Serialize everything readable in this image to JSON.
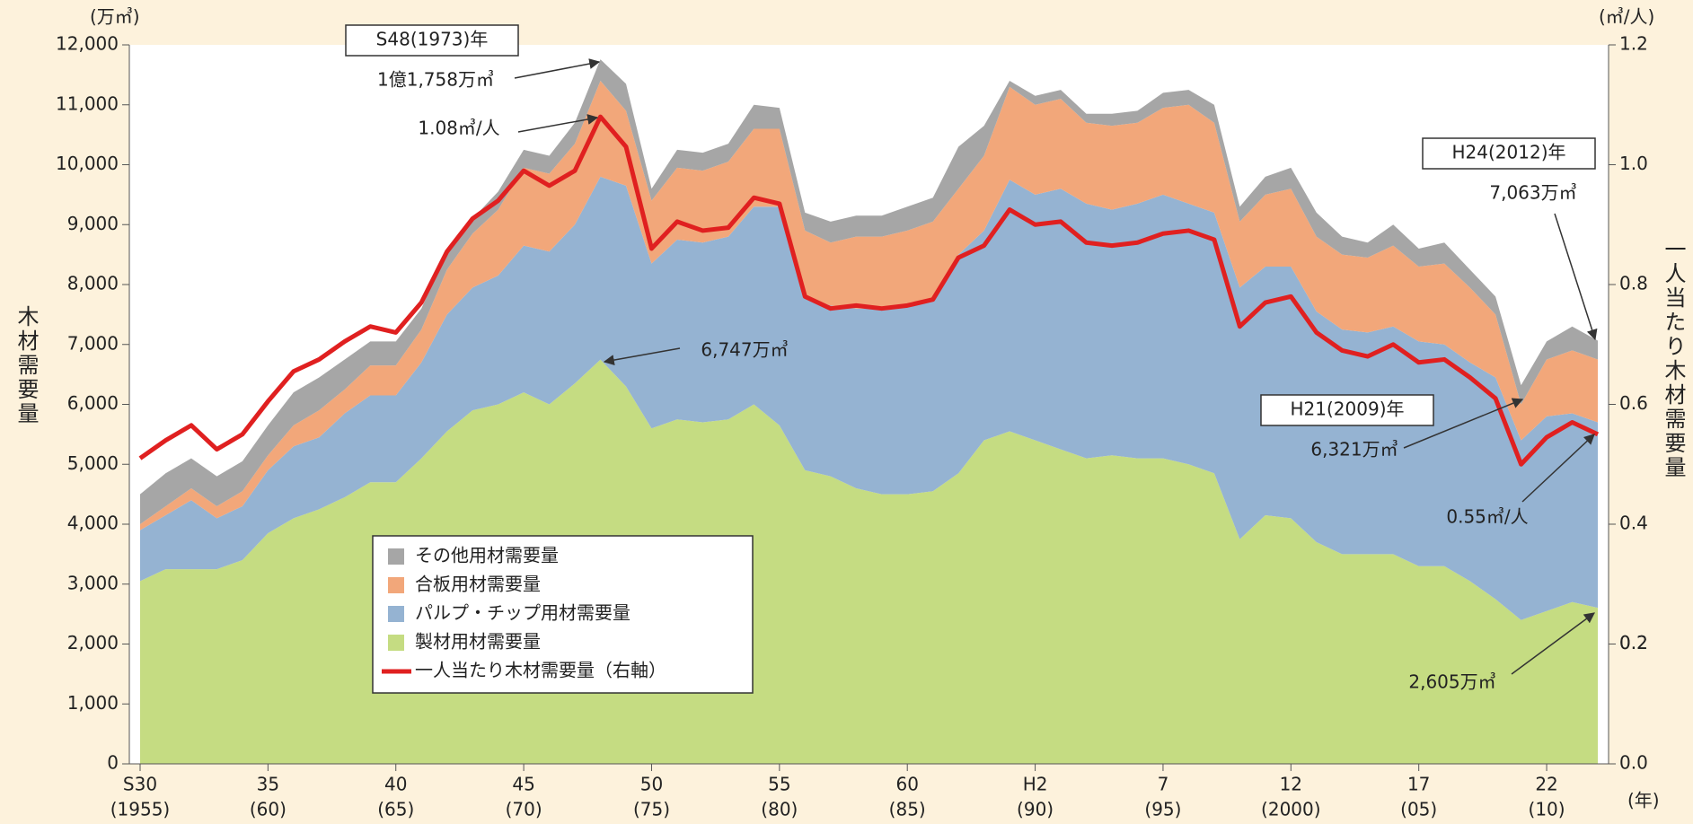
{
  "chart_data": {
    "type": "area",
    "stacked": true,
    "y_unit": "(万㎥)",
    "y2_unit": "(㎥/人)",
    "x_unit": "(年)",
    "ylabel": "木材需要量",
    "y2label": "一人当たり木材需要量",
    "x": [
      1955,
      1956,
      1957,
      1958,
      1959,
      1960,
      1961,
      1962,
      1963,
      1964,
      1965,
      1966,
      1967,
      1968,
      1969,
      1970,
      1971,
      1972,
      1973,
      1974,
      1975,
      1976,
      1977,
      1978,
      1979,
      1980,
      1981,
      1982,
      1983,
      1984,
      1985,
      1986,
      1987,
      1988,
      1989,
      1990,
      1991,
      1992,
      1993,
      1994,
      1995,
      1996,
      1997,
      1998,
      1999,
      2000,
      2001,
      2002,
      2003,
      2004,
      2005,
      2006,
      2007,
      2008,
      2009,
      2010,
      2011,
      2012
    ],
    "xlim": [
      1955,
      2012
    ],
    "xticks": [
      {
        "value": 1955,
        "label": "S30",
        "year_label": "(1955)"
      },
      {
        "value": 1960,
        "label": "35",
        "year_label": "(60)"
      },
      {
        "value": 1965,
        "label": "40",
        "year_label": "(65)"
      },
      {
        "value": 1970,
        "label": "45",
        "year_label": "(70)"
      },
      {
        "value": 1975,
        "label": "50",
        "year_label": "(75)"
      },
      {
        "value": 1980,
        "label": "55",
        "year_label": "(80)"
      },
      {
        "value": 1985,
        "label": "60",
        "year_label": "(85)"
      },
      {
        "value": 1990,
        "label": "H2",
        "year_label": "(90)"
      },
      {
        "value": 1995,
        "label": "7",
        "year_label": "(95)"
      },
      {
        "value": 2000,
        "label": "12",
        "year_label": "(2000)"
      },
      {
        "value": 2005,
        "label": "17",
        "year_label": "(05)"
      },
      {
        "value": 2010,
        "label": "22",
        "year_label": "(10)"
      }
    ],
    "ylim": [
      0,
      12000
    ],
    "yticks": [
      0,
      {
        "value": 1000,
        "label": "1,000"
      },
      {
        "value": 2000,
        "label": "2,000"
      },
      {
        "value": 3000,
        "label": "3,000"
      },
      {
        "value": 4000,
        "label": "4,000"
      },
      {
        "value": 5000,
        "label": "5,000"
      },
      {
        "value": 6000,
        "label": "6,000"
      },
      {
        "value": 7000,
        "label": "7,000"
      },
      {
        "value": 8000,
        "label": "8,000"
      },
      {
        "value": 9000,
        "label": "9,000"
      },
      {
        "value": 10000,
        "label": "10,000"
      },
      {
        "value": 11000,
        "label": "11,000"
      },
      {
        "value": 12000,
        "label": "12,000"
      }
    ],
    "y2lim": [
      0,
      1.2
    ],
    "y2ticks": [
      {
        "value": 0,
        "label": "0.0"
      },
      0.2,
      0.4,
      0.6,
      0.8,
      {
        "value": 1,
        "label": "1.0"
      },
      0.2,
      1.2
    ],
    "series": [
      {
        "name": "製材用材需要量",
        "color": "#c5dc82",
        "values": [
          3050,
          3250,
          3250,
          3250,
          3400,
          3850,
          4100,
          4250,
          4450,
          4700,
          4700,
          5100,
          5550,
          5900,
          6000,
          6200,
          6000,
          6350,
          6747,
          6300,
          5600,
          5750,
          5700,
          5750,
          6000,
          5650,
          4900,
          4800,
          4600,
          4500,
          4500,
          4550,
          4850,
          5400,
          5550,
          5400,
          5250,
          5100,
          5150,
          5100,
          5100,
          5000,
          4850,
          3750,
          4150,
          4100,
          3700,
          3500,
          3500,
          3500,
          3300,
          3300,
          3050,
          2750,
          2400,
          2550,
          2700,
          2605
        ]
      },
      {
        "name": "パルプ・チップ用材需要量",
        "color": "#95b3d2",
        "values": [
          850,
          900,
          1150,
          850,
          900,
          1050,
          1200,
          1200,
          1400,
          1450,
          1450,
          1600,
          1950,
          2050,
          2150,
          2450,
          2550,
          2650,
          3053,
          3350,
          2750,
          3000,
          3000,
          3050,
          3300,
          3650,
          2900,
          2850,
          3000,
          3100,
          3150,
          3200,
          3650,
          3500,
          4200,
          4100,
          4350,
          4250,
          4100,
          4250,
          4400,
          4350,
          4350,
          4200,
          4150,
          4200,
          3850,
          3750,
          3700,
          3800,
          3750,
          3700,
          3650,
          3700,
          3000,
          3250,
          3150,
          3095
        ]
      },
      {
        "name": "合板用材需要量",
        "color": "#f2a77a",
        "values": [
          100,
          150,
          200,
          200,
          250,
          250,
          350,
          450,
          400,
          500,
          500,
          550,
          750,
          900,
          1100,
          1300,
          1300,
          1350,
          1600,
          1250,
          1050,
          1200,
          1200,
          1250,
          1300,
          1300,
          1100,
          1050,
          1200,
          1200,
          1250,
          1300,
          1100,
          1250,
          1550,
          1500,
          1500,
          1350,
          1400,
          1350,
          1450,
          1650,
          1500,
          1100,
          1200,
          1300,
          1250,
          1250,
          1250,
          1350,
          1250,
          1350,
          1250,
          1050,
          600,
          950,
          1050,
          1050
        ]
      },
      {
        "name": "その他用材需要量",
        "color": "#a6a6a6",
        "values": [
          500,
          550,
          500,
          500,
          500,
          500,
          550,
          550,
          500,
          400,
          400,
          350,
          300,
          250,
          300,
          300,
          300,
          350,
          358,
          450,
          200,
          300,
          300,
          300,
          400,
          350,
          300,
          350,
          350,
          350,
          400,
          400,
          700,
          500,
          100,
          150,
          150,
          150,
          200,
          200,
          250,
          250,
          300,
          250,
          300,
          350,
          400,
          300,
          250,
          350,
          300,
          350,
          300,
          300,
          321,
          300,
          400,
          313
        ]
      },
      {
        "name": "一人当たり木材需要量（右軸）",
        "color": "#e02020",
        "type": "line",
        "axis": "y2",
        "values": [
          0.51,
          0.54,
          0.565,
          0.525,
          0.55,
          0.605,
          0.655,
          0.675,
          0.705,
          0.73,
          0.72,
          0.77,
          0.855,
          0.91,
          0.94,
          0.99,
          0.965,
          0.99,
          1.08,
          1.03,
          0.86,
          0.905,
          0.89,
          0.895,
          0.945,
          0.935,
          0.78,
          0.76,
          0.765,
          0.76,
          0.765,
          0.775,
          0.845,
          0.865,
          0.925,
          0.9,
          0.905,
          0.87,
          0.865,
          0.87,
          0.885,
          0.89,
          0.875,
          0.73,
          0.77,
          0.78,
          0.72,
          0.69,
          0.68,
          0.7,
          0.67,
          0.675,
          0.645,
          0.61,
          0.5,
          0.545,
          0.57,
          0.55
        ]
      }
    ],
    "annotations": [
      {
        "text": "S48(1973)年",
        "boxed": true
      },
      {
        "text": "1億1,758万㎥"
      },
      {
        "text": "1.08㎥/人"
      },
      {
        "text": "6,747万㎥"
      },
      {
        "text": "H24(2012)年",
        "boxed": true
      },
      {
        "text": "7,063万㎥"
      },
      {
        "text": "H21(2009)年",
        "boxed": true
      },
      {
        "text": "6,321万㎥"
      },
      {
        "text": "0.55㎥/人"
      },
      {
        "text": "2,605万㎥"
      }
    ]
  }
}
